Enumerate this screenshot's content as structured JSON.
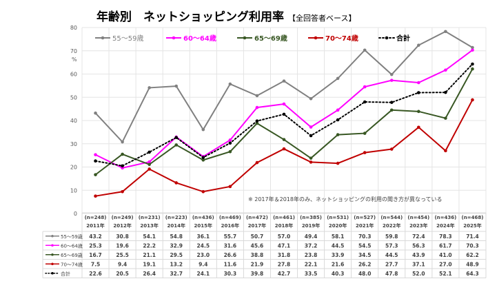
{
  "chart_data": {
    "type": "line",
    "title": "年齢別　ネットショッピング利用率",
    "subtitle": "【全回答者ベース】",
    "ylabel": "%",
    "ylim": [
      0,
      80
    ],
    "yticks": [
      "0",
      "10",
      "20",
      "30",
      "40",
      "50",
      "60",
      "70",
      "80"
    ],
    "grid": true,
    "legend": "top-left",
    "note": "※ 2017年＆2018年のみ、ネットショッピングの利用の聞き方が異なっている",
    "categories": [
      "2011年",
      "2012年",
      "2013年",
      "2014年",
      "2015年",
      "2016年",
      "2017年",
      "2018年",
      "2019年",
      "2020年",
      "2021年",
      "2022年",
      "2023年",
      "2024年",
      "2025年"
    ],
    "sample_sizes": [
      "(n=248)",
      "(n=249)",
      "(n=231)",
      "(n=223)",
      "(n=436)",
      "(n=469)",
      "(n=472)",
      "(n=461)",
      "(n=385)",
      "(n=531)",
      "(n=527)",
      "(n=544)",
      "(n=454)",
      "(n=436)",
      "(n=468)"
    ],
    "series": [
      {
        "name": "55～59歳",
        "color": "#808080",
        "dash": false,
        "values": [
          43.2,
          30.8,
          54.1,
          54.8,
          36.1,
          55.7,
          50.7,
          57.0,
          49.4,
          58.1,
          70.3,
          59.8,
          72.4,
          78.3,
          71.4
        ]
      },
      {
        "name": "60～64歳",
        "color": "#ff00ff",
        "dash": false,
        "values": [
          25.3,
          19.6,
          22.2,
          32.9,
          24.5,
          31.6,
          45.6,
          47.1,
          37.2,
          44.5,
          54.5,
          57.3,
          56.3,
          61.7,
          70.3
        ]
      },
      {
        "name": "65～69歳",
        "color": "#385723",
        "dash": false,
        "values": [
          16.7,
          25.5,
          21.1,
          29.5,
          23.0,
          26.6,
          38.8,
          31.8,
          23.8,
          33.9,
          34.5,
          44.5,
          43.9,
          41.0,
          62.2
        ]
      },
      {
        "name": "70～74歳",
        "color": "#c00000",
        "dash": false,
        "values": [
          7.5,
          9.4,
          19.1,
          13.2,
          9.4,
          11.6,
          21.9,
          27.8,
          22.1,
          21.6,
          26.2,
          27.7,
          37.1,
          27.0,
          48.9
        ]
      },
      {
        "name": "合計",
        "color": "#000000",
        "dash": true,
        "values": [
          22.6,
          20.5,
          26.4,
          32.7,
          24.1,
          30.3,
          39.8,
          42.7,
          33.5,
          40.3,
          48.0,
          47.8,
          52.0,
          52.1,
          64.3
        ]
      }
    ]
  }
}
